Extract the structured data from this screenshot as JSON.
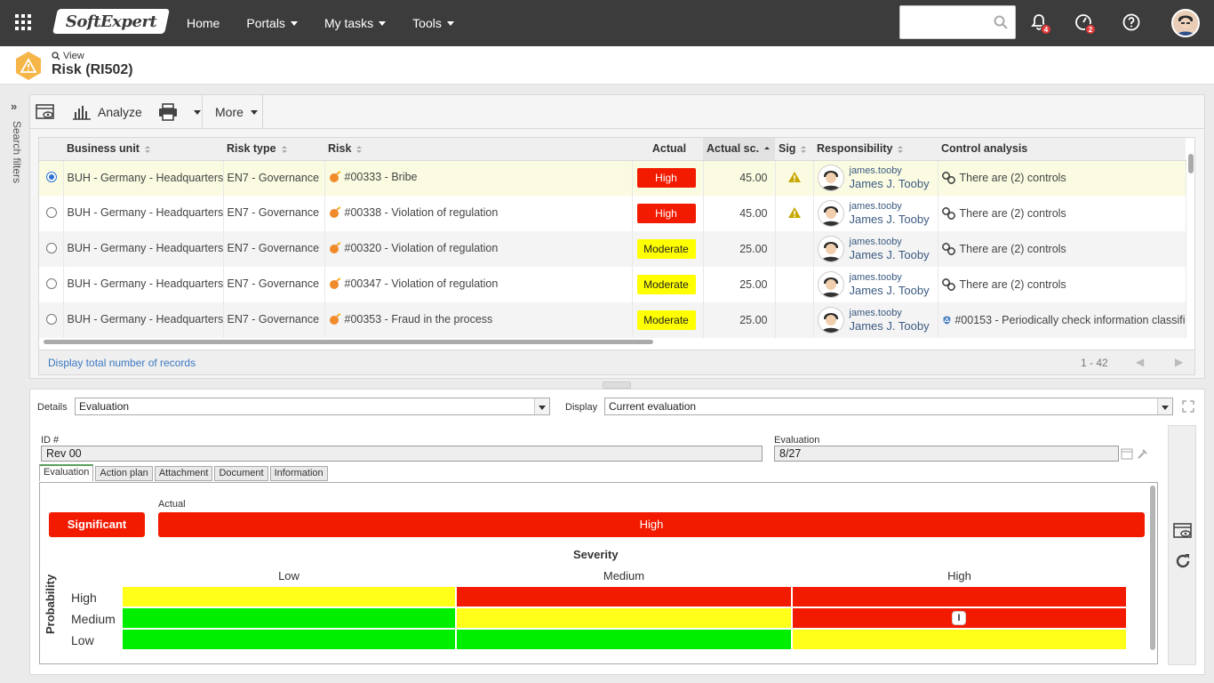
{
  "topbar": {
    "logo": "SoftExpert",
    "nav": [
      "Home",
      "Portals",
      "My tasks",
      "Tools"
    ],
    "search_placeholder": "",
    "notifications_count": "4",
    "tasks_count": "2"
  },
  "header": {
    "view_label": "View",
    "title": "Risk (RI502)"
  },
  "side_filters": {
    "label": "Search filters"
  },
  "toolbar": {
    "analyze": "Analyze",
    "more": "More"
  },
  "table": {
    "columns": [
      "Business unit",
      "Risk type",
      "Risk",
      "Actual",
      "Actual sc.",
      "Sig",
      "Responsibility",
      "Control analysis"
    ],
    "rows": [
      {
        "unit": "BUH - Germany - Headquarters",
        "type": "EN7 - Governance",
        "risk": "#00333 - Bribe",
        "actual": "High",
        "score": "45.00",
        "sig": true,
        "user": "james.tooby",
        "name": "James J. Tooby",
        "control": "There are (2) controls"
      },
      {
        "unit": "BUH - Germany - Headquarters",
        "type": "EN7 - Governance",
        "risk": "#00338 - Violation of regulation",
        "actual": "High",
        "score": "45.00",
        "sig": true,
        "user": "james.tooby",
        "name": "James J. Tooby",
        "control": "There are (2) controls"
      },
      {
        "unit": "BUH - Germany - Headquarters",
        "type": "EN7 - Governance",
        "risk": "#00320 - Violation of regulation",
        "actual": "Moderate",
        "score": "25.00",
        "sig": false,
        "user": "james.tooby",
        "name": "James J. Tooby",
        "control": "There are (2) controls"
      },
      {
        "unit": "BUH - Germany - Headquarters",
        "type": "EN7 - Governance",
        "risk": "#00347 - Violation of regulation",
        "actual": "Moderate",
        "score": "25.00",
        "sig": false,
        "user": "james.tooby",
        "name": "James J. Tooby",
        "control": "There are (2) controls"
      },
      {
        "unit": "BUH - Germany - Headquarters",
        "type": "EN7 - Governance",
        "risk": "#00353 - Fraud in the process",
        "actual": "Moderate",
        "score": "25.00",
        "sig": false,
        "user": "james.tooby",
        "name": "James J. Tooby",
        "control": "#00153 - Periodically check information classifi"
      }
    ],
    "footer_link": "Display total number of records",
    "range": "1 - 42"
  },
  "details": {
    "details_label": "Details",
    "details_value": "Evaluation",
    "display_label": "Display",
    "display_value": "Current evaluation",
    "id_label": "ID #",
    "id_value": "Rev 00",
    "eval_label": "Evaluation",
    "eval_value": "8/27",
    "tabs": [
      "Evaluation",
      "Action plan",
      "Attachment",
      "Document",
      "Information"
    ]
  },
  "evaluation": {
    "significance": "Significant",
    "actual_label": "Actual",
    "actual_value": "High",
    "severity_title": "Severity",
    "severity_levels": [
      "Low",
      "Medium",
      "High"
    ],
    "probability_title": "Probability",
    "probability_levels": [
      "High",
      "Medium",
      "Low"
    ],
    "marker": "I",
    "colors": {
      "red": "#f21b00",
      "yellow": "#ffff1a",
      "green": "#00ee00"
    }
  }
}
